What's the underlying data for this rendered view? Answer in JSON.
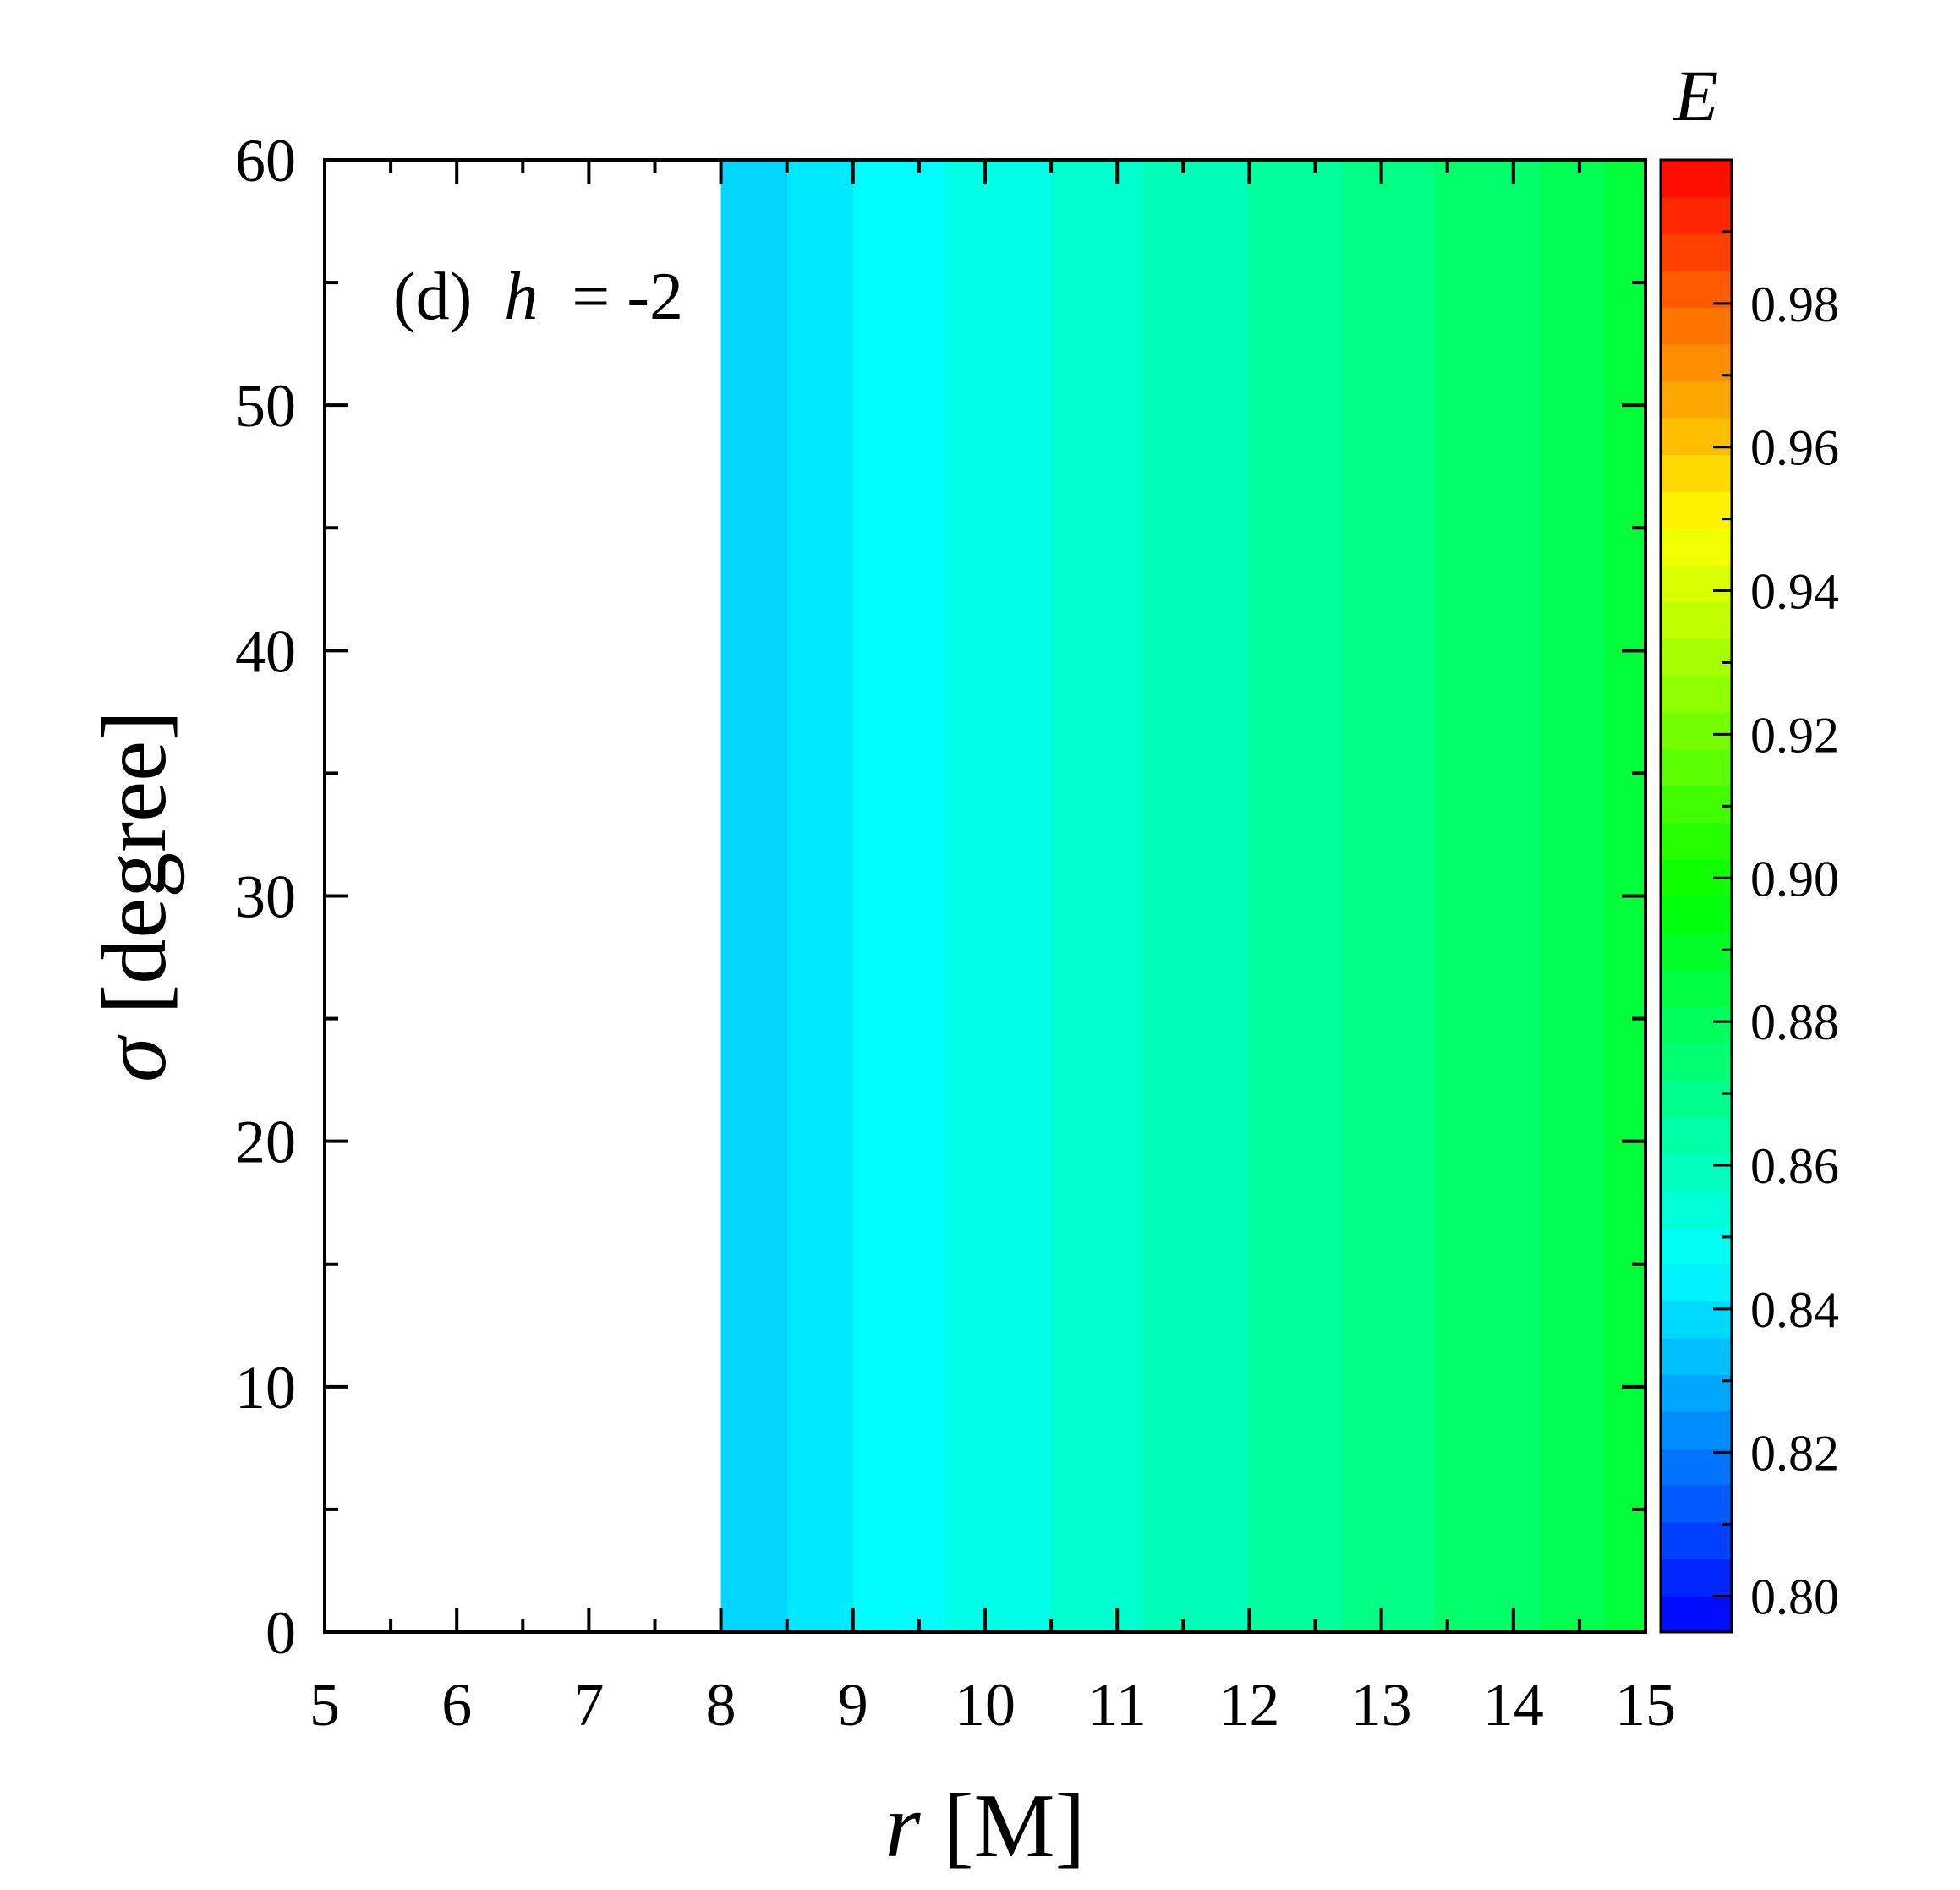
{
  "chart_data": {
    "type": "heatmap",
    "panel_label": "(d)",
    "annotation_var": "h",
    "annotation_rel": " = -2",
    "xlabel_var": "r",
    "xlabel_unit": " [M]",
    "ylabel_var": "σ",
    "ylabel_unit": " [degree]",
    "colorbar_label": "E",
    "xlim": [
      5,
      15
    ],
    "ylim": [
      0,
      60
    ],
    "clim": [
      0.795,
      1.0
    ],
    "x_ticks": [
      5,
      6,
      7,
      8,
      9,
      10,
      11,
      12,
      13,
      14,
      15
    ],
    "x_tick_labels": [
      "5",
      "6",
      "7",
      "8",
      "9",
      "10",
      "11",
      "12",
      "13",
      "14",
      "15"
    ],
    "y_ticks": [
      0,
      10,
      20,
      30,
      40,
      50,
      60
    ],
    "y_tick_labels": [
      "0",
      "10",
      "20",
      "30",
      "40",
      "50",
      "60"
    ],
    "colorbar_ticks": [
      0.8,
      0.82,
      0.84,
      0.86,
      0.88,
      0.9,
      0.92,
      0.94,
      0.96,
      0.98
    ],
    "colorbar_tick_labels": [
      "0.80",
      "0.82",
      "0.84",
      "0.86",
      "0.88",
      "0.90",
      "0.92",
      "0.94",
      "0.96",
      "0.98"
    ],
    "colormap": [
      "#0000ff",
      "#0080ff",
      "#00ffff",
      "#00ff80",
      "#00ff00",
      "#80ff00",
      "#ffff00",
      "#ff8000",
      "#ff0000"
    ],
    "colormap_levels": 40,
    "data_note_domain": "E defined for r >= 8, independent of sigma",
    "columns": [
      {
        "r0": 8.0,
        "r1": 8.5,
        "E": 0.838
      },
      {
        "r0": 8.5,
        "r1": 9.0,
        "E": 0.842
      },
      {
        "r0": 9.0,
        "r1": 9.7,
        "E": 0.846
      },
      {
        "r0": 9.7,
        "r1": 10.5,
        "E": 0.851
      },
      {
        "r0": 10.5,
        "r1": 11.2,
        "E": 0.856
      },
      {
        "r0": 11.2,
        "r1": 12.0,
        "E": 0.861
      },
      {
        "r0": 12.0,
        "r1": 12.7,
        "E": 0.866
      },
      {
        "r0": 12.7,
        "r1": 13.4,
        "E": 0.871
      },
      {
        "r0": 13.4,
        "r1": 14.2,
        "E": 0.876
      },
      {
        "r0": 14.2,
        "r1": 14.7,
        "E": 0.881
      },
      {
        "r0": 14.7,
        "r1": 15.0,
        "E": 0.886
      }
    ]
  }
}
